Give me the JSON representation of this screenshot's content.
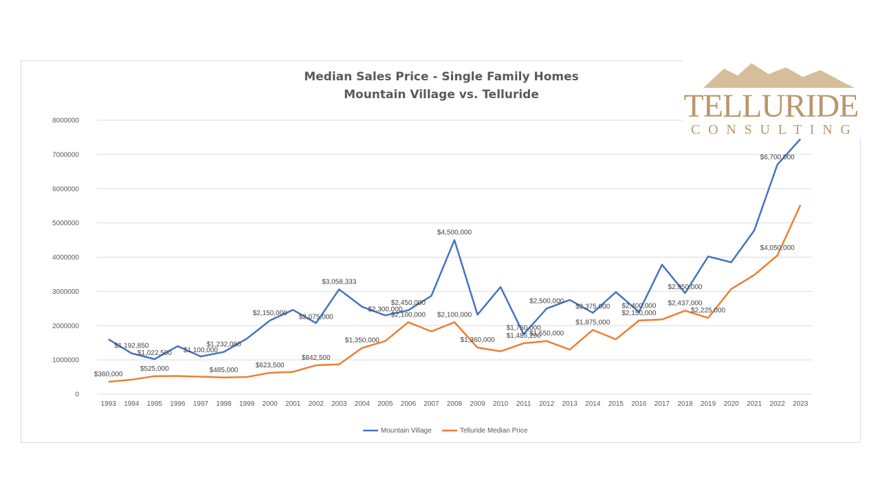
{
  "chart_data": {
    "type": "line",
    "title": "Median Sales Price - Single Family Homes",
    "subtitle": "Mountain Village vs. Telluride",
    "xlabel": "",
    "ylabel": "",
    "ylim": [
      0,
      8000000
    ],
    "yticks": [
      "0",
      "1000000",
      "2000000",
      "3000000",
      "4000000",
      "5000000",
      "6000000",
      "7000000",
      "8000000"
    ],
    "grid": true,
    "legend_position": "bottom",
    "categories": [
      "1993",
      "1994",
      "1995",
      "1996",
      "1997",
      "1998",
      "1999",
      "2000",
      "2001",
      "2002",
      "2003",
      "2004",
      "2005",
      "2006",
      "2007",
      "2008",
      "2009",
      "2010",
      "2011",
      "2012",
      "2013",
      "2014",
      "2015",
      "2016",
      "2017",
      "2018",
      "2019",
      "2020",
      "2021",
      "2022",
      "2023"
    ],
    "series": [
      {
        "name": "Mountain Village",
        "color": "#4472c4",
        "values": [
          1600000,
          1192850,
          1022500,
          1400000,
          1100000,
          1232080,
          1620000,
          2150000,
          2460000,
          2075000,
          3058333,
          2550000,
          2300000,
          2450000,
          2870000,
          4500000,
          2320000,
          3130000,
          1750000,
          2500000,
          2750000,
          2375000,
          2980000,
          2400000,
          3780000,
          2950000,
          4020000,
          3850000,
          4780000,
          6700000,
          7450000
        ],
        "labels": [
          null,
          "$1,192,850",
          "$1,022,500",
          null,
          "$1,100,000",
          "$1,232,080",
          null,
          "$2,150,000",
          null,
          "$2,075,000",
          "$3,058,333",
          null,
          "$2,300,000",
          "$2,450,000",
          null,
          "$4,500,000",
          null,
          null,
          "$1,750,000",
          "$2,500,000",
          null,
          "$2,375,000",
          null,
          "$2,400,000",
          null,
          "$2,950,000",
          null,
          null,
          null,
          "$6,700,000",
          null
        ]
      },
      {
        "name": "Telluride Median Price",
        "color": "#ed7d31",
        "values": [
          360000,
          420000,
          525000,
          530000,
          510000,
          485000,
          500000,
          623500,
          650000,
          842500,
          870000,
          1350000,
          1550000,
          2100000,
          1830000,
          2100000,
          1360000,
          1250000,
          1485200,
          1550000,
          1300000,
          1875000,
          1600000,
          2150000,
          2180000,
          2437000,
          2225000,
          3070000,
          3480000,
          4050000,
          5520000
        ],
        "labels": [
          "$360,000",
          null,
          "$525,000",
          null,
          null,
          "$485,000",
          null,
          "$623,500",
          null,
          "$842,500",
          null,
          "$1,350,000",
          null,
          "$2,100,000",
          null,
          "$2,100,000",
          "$1,360,000",
          null,
          "$1,485,200",
          "$1,550,000",
          null,
          "$1,875,000",
          null,
          "$2,150,000",
          null,
          "$2,437,000",
          "$2,225,000",
          null,
          null,
          "$4,050,000",
          null
        ]
      }
    ]
  },
  "logo": {
    "line1": "TELLURIDE",
    "line2": "CONSULTING",
    "color": "#b8976a"
  }
}
